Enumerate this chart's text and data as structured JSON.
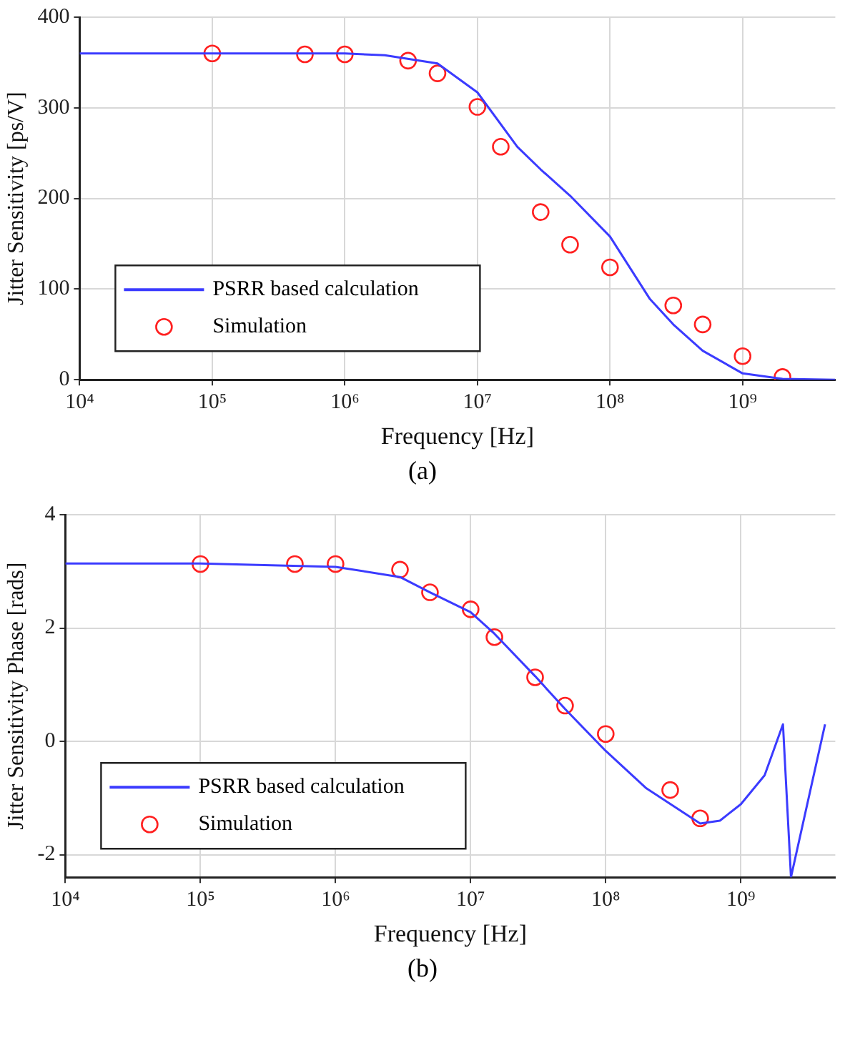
{
  "chart_data": [
    {
      "type": "line",
      "xlabel": "Frequency [Hz]",
      "ylabel": "Jitter Sensitivity [ps/V]",
      "annotations": [
        "(a)"
      ],
      "log": "x",
      "grid": true,
      "legend": "bottom left",
      "xlim": [
        10000,
        5000000000
      ],
      "ylim": [
        0,
        400
      ],
      "xticks": [
        {
          "value": 10000,
          "label": "10⁴"
        },
        {
          "value": 100000,
          "label": "10⁵"
        },
        {
          "value": 1000000,
          "label": "10⁶"
        },
        {
          "value": 10000000,
          "label": "10⁷"
        },
        {
          "value": 100000000,
          "label": "10⁸"
        },
        {
          "value": 1000000000,
          "label": "10⁹"
        }
      ],
      "yticks": [
        0,
        100,
        200,
        300,
        400
      ],
      "series": [
        {
          "name": "PSRR based calculation",
          "color": "#3b3bff",
          "marker": "none",
          "line_style": "solid",
          "x": [
            10000,
            100000,
            1000000,
            2000000,
            5000000,
            10000000,
            20000000,
            30000000,
            50000000,
            100000000,
            200000000,
            300000000,
            500000000,
            1000000000,
            2000000000,
            5000000000
          ],
          "values": [
            360,
            360,
            360,
            358,
            349,
            317,
            257,
            232,
            203,
            158,
            89,
            61,
            32,
            7,
            1,
            0
          ]
        },
        {
          "name": "Simulation",
          "type": "scatter",
          "color": "#ff2020",
          "marker": "circle",
          "x": [
            100000,
            500000,
            1000000,
            3000000,
            5000000,
            10000000,
            15000000,
            30000000,
            50000000,
            100000000,
            300000000,
            500000000,
            1000000000,
            2000000000
          ],
          "values": [
            360,
            359,
            359,
            352,
            338,
            301,
            257,
            185,
            149,
            124,
            82,
            61,
            26,
            3
          ]
        }
      ]
    },
    {
      "type": "line",
      "xlabel": "Frequency [Hz]",
      "ylabel": "Jitter Sensitivity Phase [rads]",
      "annotations": [
        "(b)"
      ],
      "log": "x",
      "grid": true,
      "legend": "bottom left",
      "xlim": [
        10000,
        5000000000
      ],
      "ylim": [
        -2.4,
        4
      ],
      "xticks": [
        {
          "value": 10000,
          "label": "10⁴"
        },
        {
          "value": 100000,
          "label": "10⁵"
        },
        {
          "value": 1000000,
          "label": "10⁶"
        },
        {
          "value": 10000000,
          "label": "10⁷"
        },
        {
          "value": 100000000,
          "label": "10⁸"
        },
        {
          "value": 1000000000,
          "label": "10⁹"
        }
      ],
      "yticks": [
        -2,
        0,
        2,
        4
      ],
      "series": [
        {
          "name": "PSRR based calculation",
          "color": "#3b3bff",
          "marker": "none",
          "line_style": "solid",
          "x": [
            10000,
            100000,
            1000000,
            3000000,
            5000000,
            10000000,
            15000000,
            30000000,
            50000000,
            100000000,
            200000000,
            500000000,
            700000000,
            1000000000,
            1500000000,
            2050000000,
            2350000000,
            4200000000
          ],
          "values": [
            3.14,
            3.14,
            3.08,
            2.9,
            2.63,
            2.28,
            1.9,
            1.15,
            0.57,
            -0.17,
            -0.83,
            -1.45,
            -1.4,
            -1.11,
            -0.6,
            0.3,
            -2.4,
            0.3
          ]
        },
        {
          "name": "Simulation",
          "type": "scatter",
          "color": "#ff2020",
          "marker": "circle",
          "x": [
            100000,
            500000,
            1000000,
            3000000,
            5000000,
            10000000,
            15000000,
            30000000,
            50000000,
            100000000,
            300000000,
            500000000
          ],
          "values": [
            3.13,
            3.13,
            3.13,
            3.03,
            2.63,
            2.33,
            1.84,
            1.13,
            0.63,
            0.13,
            -0.86,
            -1.36
          ]
        }
      ]
    }
  ]
}
